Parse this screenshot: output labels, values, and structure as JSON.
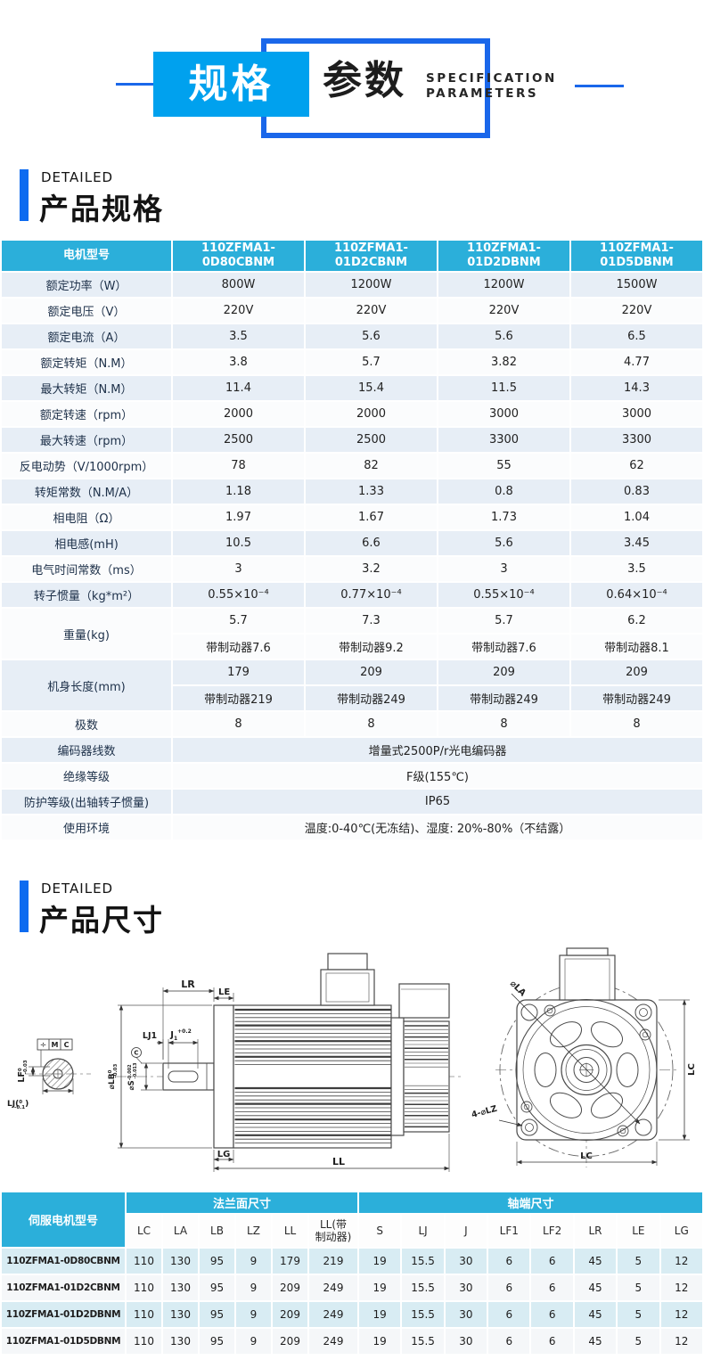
{
  "banner": {
    "badge": "规格",
    "title": "参数",
    "subtitle1": "SPECIFICATION",
    "subtitle2": "PARAMETERS"
  },
  "spec_section": {
    "eyebrow": "DETAILED",
    "title": "产品规格"
  },
  "dim_section": {
    "eyebrow": "DETAILED",
    "title": "产品尺寸"
  },
  "colors": {
    "cyan": "#2bafda",
    "banner_cyan": "#00a1ee",
    "blue": "#0d6bf0",
    "outline_blue": "#1a67ea",
    "row_light": "#e7eef6",
    "row_white": "#fbfcfd",
    "dim_row_light": "#d8ecf3",
    "dim_row_white": "#f5f7f9"
  },
  "spec_table": {
    "corner_label": "电机型号",
    "models": [
      "110ZFMA1-\n0D80CBNM",
      "110ZFMA1-\n01D2CBNM",
      "110ZFMA1-\n01D2DBNM",
      "110ZFMA1-\n01D5DBNM"
    ],
    "rows": [
      {
        "label": "额定功率（W）",
        "values": [
          "800W",
          "1200W",
          "1200W",
          "1500W"
        ]
      },
      {
        "label": "额定电压（V）",
        "values": [
          "220V",
          "220V",
          "220V",
          "220V"
        ]
      },
      {
        "label": "额定电流（A）",
        "values": [
          "3.5",
          "5.6",
          "5.6",
          "6.5"
        ]
      },
      {
        "label": "额定转矩（N.M）",
        "values": [
          "3.8",
          "5.7",
          "3.82",
          "4.77"
        ]
      },
      {
        "label": "最大转矩（N.M）",
        "values": [
          "11.4",
          "15.4",
          "11.5",
          "14.3"
        ]
      },
      {
        "label": "额定转速（rpm）",
        "values": [
          "2000",
          "2000",
          "3000",
          "3000"
        ]
      },
      {
        "label": "最大转速（rpm）",
        "values": [
          "2500",
          "2500",
          "3300",
          "3300"
        ]
      },
      {
        "label": "反电动势（V/1000rpm）",
        "values": [
          "78",
          "82",
          "55",
          "62"
        ]
      },
      {
        "label": "转矩常数（N.M/A）",
        "values": [
          "1.18",
          "1.33",
          "0.8",
          "0.83"
        ]
      },
      {
        "label": "相电阻（Ω）",
        "values": [
          "1.97",
          "1.67",
          "1.73",
          "1.04"
        ]
      },
      {
        "label": "相电感(mH)",
        "values": [
          "10.5",
          "6.6",
          "5.6",
          "3.45"
        ]
      },
      {
        "label": "电气时间常数（ms）",
        "values": [
          "3",
          "3.2",
          "3",
          "3.5"
        ]
      },
      {
        "label": "转子惯量（kg*m²）",
        "values": [
          "0.55×10⁻⁴",
          "0.77×10⁻⁴",
          "0.55×10⁻⁴",
          "0.64×10⁻⁴"
        ]
      },
      {
        "label": "重量(kg)",
        "subrows": [
          [
            "5.7",
            "7.3",
            "5.7",
            "6.2"
          ],
          [
            "带制动器7.6",
            "带制动器9.2",
            "带制动器7.6",
            "带制动器8.1"
          ]
        ]
      },
      {
        "label": "机身长度(mm)",
        "subrows": [
          [
            "179",
            "209",
            "209",
            "209"
          ],
          [
            "带制动器219",
            "带制动器249",
            "带制动器249",
            "带制动器249"
          ]
        ]
      },
      {
        "label": "极数",
        "values": [
          "8",
          "8",
          "8",
          "8"
        ]
      },
      {
        "label": "编码器线数",
        "span": "增量式2500P/r光电编码器"
      },
      {
        "label": "绝缘等级",
        "span": "F级(155℃)"
      },
      {
        "label": "防护等级(出轴转子惯量)",
        "span": "IP65"
      },
      {
        "label": "使用环境",
        "span": "温度:0-40℃(无冻结)、湿度: 20%-80%（不结露）"
      }
    ]
  },
  "drawing": {
    "section_view": {
      "datum_sym": "÷",
      "datum_m": "M",
      "datum_c": "C",
      "lf": "LF",
      "lf_top": "0",
      "lf_bot": "-0.03",
      "lj_open": "LJ(",
      "lj_top": "0",
      "lj_bot": "-0.1",
      "lj_close": ")"
    },
    "side_view": {
      "lr": "LR",
      "le": "LE",
      "lj1": "LJ1",
      "j": "J",
      "j_sub": "1",
      "j_sup": "+0.2",
      "c": "C",
      "s": "⌀S",
      "s_top": "-0.002",
      "s_bot": "-0.013",
      "lb": "⌀LB",
      "lb_top": "0",
      "lb_bot": "-0.03",
      "lg": "LG",
      "ll": "LL"
    },
    "front_view": {
      "la": "⌀LA",
      "lz": "4-⌀LZ",
      "lc_right": "LC",
      "lc_bottom": "LC"
    }
  },
  "dim_table": {
    "model_header": "伺服电机型号",
    "group1": "法兰面尺寸",
    "group2": "轴端尺寸",
    "group1_span": 6,
    "group2_span": 8,
    "columns": [
      "LC",
      "LA",
      "LB",
      "LZ",
      "LL",
      "LL(带\n制动器)",
      "S",
      "LJ",
      "J",
      "LF1",
      "LF2",
      "LR",
      "LE",
      "LG"
    ],
    "rows": [
      {
        "model": "110ZFMA1-0D80CBNM",
        "values": [
          "110",
          "130",
          "95",
          "9",
          "179",
          "219",
          "19",
          "15.5",
          "30",
          "6",
          "6",
          "45",
          "5",
          "12"
        ]
      },
      {
        "model": "110ZFMA1-01D2CBNM",
        "values": [
          "110",
          "130",
          "95",
          "9",
          "209",
          "249",
          "19",
          "15.5",
          "30",
          "6",
          "6",
          "45",
          "5",
          "12"
        ]
      },
      {
        "model": "110ZFMA1-01D2DBNM",
        "values": [
          "110",
          "130",
          "95",
          "9",
          "209",
          "249",
          "19",
          "15.5",
          "30",
          "6",
          "6",
          "45",
          "5",
          "12"
        ]
      },
      {
        "model": "110ZFMA1-01D5DBNM",
        "values": [
          "110",
          "130",
          "95",
          "9",
          "209",
          "249",
          "19",
          "15.5",
          "30",
          "6",
          "6",
          "45",
          "5",
          "12"
        ]
      }
    ]
  }
}
